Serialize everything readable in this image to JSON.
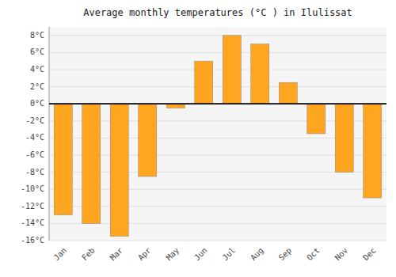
{
  "chart_data": {
    "type": "bar",
    "title": "Average monthly temperatures (°C ) in Ilulissat",
    "categories": [
      "Jan",
      "Feb",
      "Mar",
      "Apr",
      "May",
      "Jun",
      "Jul",
      "Aug",
      "Sep",
      "Oct",
      "Nov",
      "Dec"
    ],
    "values": [
      -13,
      -14,
      -15.5,
      -8.5,
      -0.5,
      5,
      8,
      7,
      2.5,
      -3.5,
      -8,
      -11
    ],
    "color": "#FFA520",
    "ylim": [
      -16,
      9
    ],
    "yticks": [
      {
        "value": -16,
        "label": "-16°C"
      },
      {
        "value": -14,
        "label": "-14°C"
      },
      {
        "value": -12,
        "label": "-12°C"
      },
      {
        "value": -10,
        "label": "-10°C"
      },
      {
        "value": -8,
        "label": "-8°C"
      },
      {
        "value": -6,
        "label": "-6°C"
      },
      {
        "value": -4,
        "label": "-4°C"
      },
      {
        "value": -2,
        "label": "-2°C"
      },
      {
        "value": 0,
        "label": "0°C"
      },
      {
        "value": 2,
        "label": "2°C"
      },
      {
        "value": 4,
        "label": "4°C"
      },
      {
        "value": 6,
        "label": "6°C"
      },
      {
        "value": 8,
        "label": "8°C"
      }
    ],
    "grid": true
  }
}
